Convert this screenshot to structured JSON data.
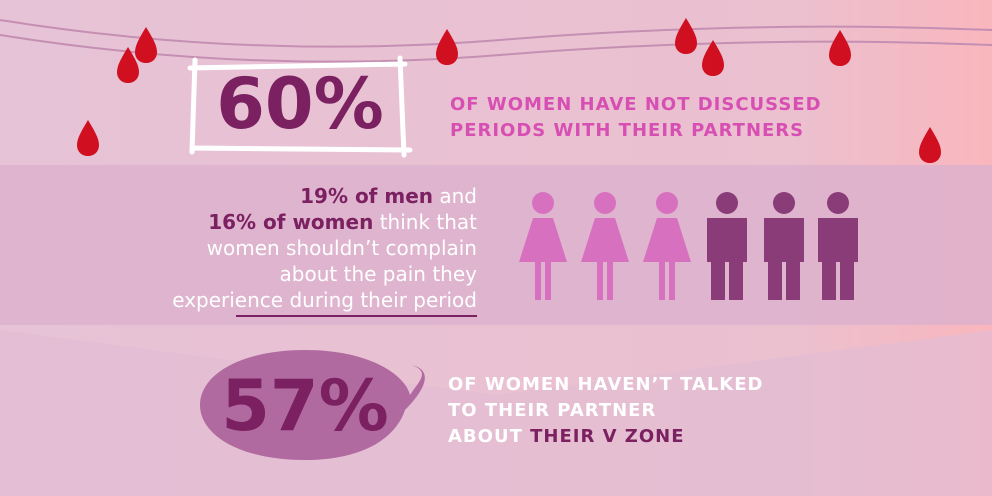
{
  "stat1": {
    "figure": "60%",
    "lines": [
      "OF WOMEN HAVE NOT DISCUSSED",
      "PERIODS WITH THEIR PARTNERS"
    ]
  },
  "stat2": {
    "lines": [
      {
        "bold": "19% of men",
        "text": "and"
      },
      {
        "bold": "16% of women",
        "text": "think that"
      },
      {
        "text": "women shouldn’t complain"
      },
      {
        "text": "about the pain they"
      },
      {
        "text": "experience during their period"
      }
    ]
  },
  "stat3": {
    "figure": "57%",
    "lines": [
      "OF WOMEN HAVEN’T TALKED",
      "TO THEIR PARTNER"
    ],
    "last": {
      "text": "ABOUT",
      "highlight": "THEIR V ZONE"
    }
  }
}
